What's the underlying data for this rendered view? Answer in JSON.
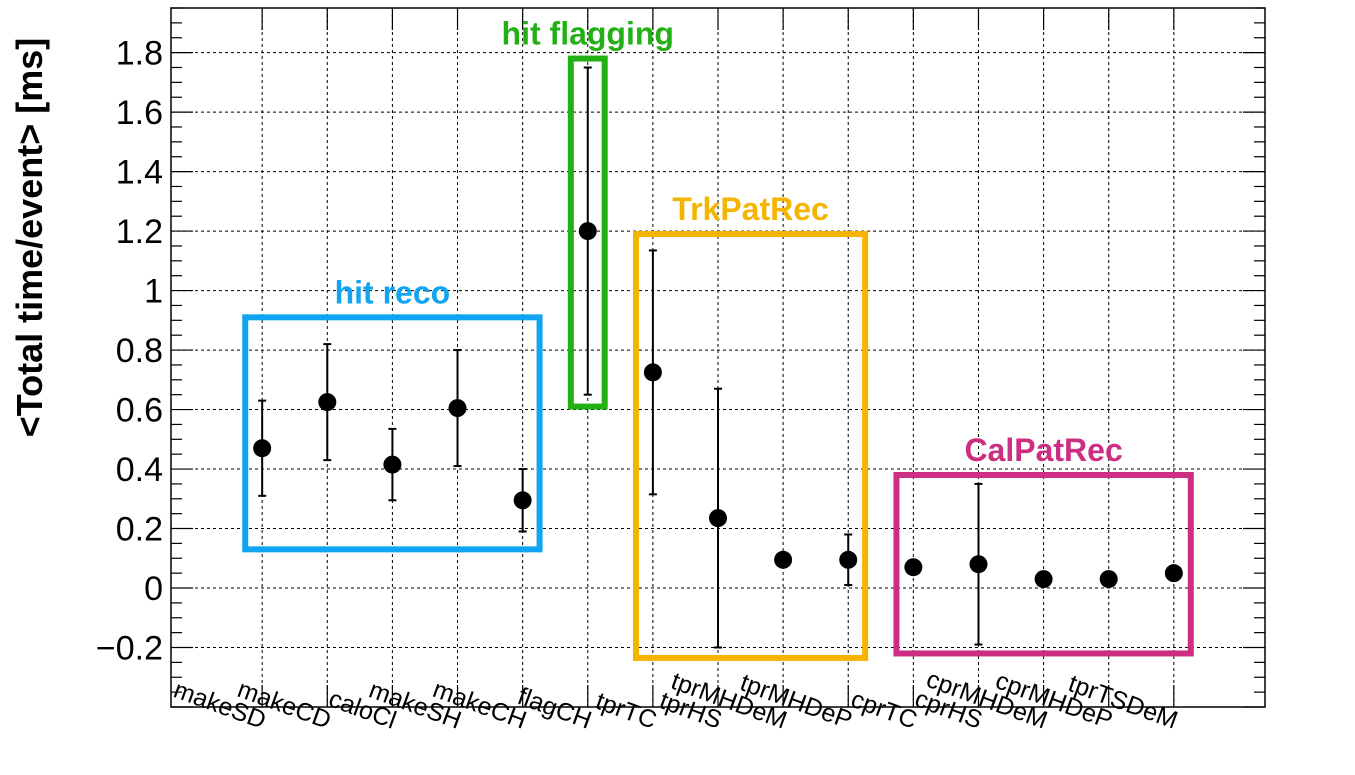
{
  "chart_data": {
    "type": "scatter",
    "title": "",
    "xlabel": "",
    "ylabel": "<Total time/event> [ms]",
    "ylim": [
      -0.4,
      1.95
    ],
    "yticks": [
      -0.2,
      0,
      0.2,
      0.4,
      0.6,
      0.8,
      1,
      1.2,
      1.4,
      1.6,
      1.8
    ],
    "ytick_labels": [
      "−0.2",
      "0",
      "0.2",
      "0.4",
      "0.6",
      "0.8",
      "1",
      "1.2",
      "1.4",
      "1.6",
      "1.8"
    ],
    "grid": true,
    "categories": [
      "makeSD",
      "makeCD",
      "caloCl",
      "makeSH",
      "makeCH",
      "flagCH",
      "tprTC",
      "tprHS",
      "tprMHDeM",
      "tprMHDeP",
      "cprTC",
      "cprHS",
      "cprMHDeM",
      "cprMHDeP",
      "tprTSDeM"
    ],
    "series": [
      {
        "values": [
          0.47,
          0.625,
          0.415,
          0.605,
          0.295,
          1.2,
          0.725,
          0.235,
          0.095,
          0.095,
          0.07,
          0.08,
          0.03,
          0.03,
          0.05
        ],
        "errors": [
          0.16,
          0.195,
          0.12,
          0.195,
          0.105,
          0.55,
          0.41,
          0.435,
          0.0,
          0.085,
          0.0,
          0.27,
          0.0,
          0.0,
          0.0
        ]
      }
    ],
    "groups": [
      {
        "label": "hit reco",
        "color": "#11a4f0",
        "first": 0,
        "last": 4,
        "ymin": 0.13,
        "ymax": 0.91
      },
      {
        "label": "hit flagging",
        "color": "#22b014",
        "first": 5,
        "last": 5,
        "ymin": 0.61,
        "ymax": 1.78
      },
      {
        "label": "TrkPatRec",
        "color": "#f5b400",
        "first": 6,
        "last": 9,
        "ymin": -0.235,
        "ymax": 1.19
      },
      {
        "label": "CalPatRec",
        "color": "#cc2e82",
        "first": 10,
        "last": 14,
        "ymin": -0.22,
        "ymax": 0.38
      }
    ]
  }
}
